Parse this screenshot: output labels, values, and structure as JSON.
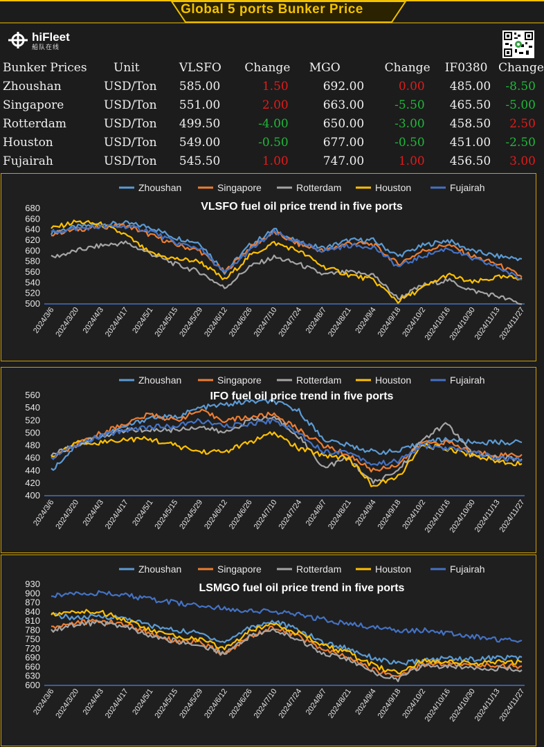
{
  "banner": {
    "title": "Global 5 ports  Bunker Price"
  },
  "logo": {
    "brand": "hiFleet",
    "brand_cn": "船队在线"
  },
  "table": {
    "headers": [
      "Bunker Prices",
      "Unit",
      "VLSFO",
      "Change",
      "MGO",
      "Change",
      "IF0380",
      "Change"
    ],
    "rows": [
      {
        "port": "Zhoushan",
        "unit": "USD/Ton",
        "vlsfo": "585.00",
        "vlsfo_chg": "1.50",
        "mgo": "692.00",
        "mgo_chg": "0.00",
        "ifo": "485.00",
        "ifo_chg": "-8.50"
      },
      {
        "port": "Singapore",
        "unit": "USD/Ton",
        "vlsfo": "551.00",
        "vlsfo_chg": "2.00",
        "mgo": "663.00",
        "mgo_chg": "-5.50",
        "ifo": "465.50",
        "ifo_chg": "-5.00"
      },
      {
        "port": "Rotterdam",
        "unit": "USD/Ton",
        "vlsfo": "499.50",
        "vlsfo_chg": "-4.00",
        "mgo": "650.00",
        "mgo_chg": "-3.00",
        "ifo": "458.50",
        "ifo_chg": "2.50"
      },
      {
        "port": "Houston",
        "unit": "USD/Ton",
        "vlsfo": "549.00",
        "vlsfo_chg": "-0.50",
        "mgo": "677.00",
        "mgo_chg": "-0.50",
        "ifo": "451.00",
        "ifo_chg": "-2.50"
      },
      {
        "port": "Fujairah",
        "unit": "USD/Ton",
        "vlsfo": "545.50",
        "vlsfo_chg": "1.00",
        "mgo": "747.00",
        "mgo_chg": "1.00",
        "ifo": "456.50",
        "ifo_chg": "3.00"
      }
    ]
  },
  "colors": {
    "Zhoushan": "#5b9bd5",
    "Singapore": "#ed7d31",
    "Rotterdam": "#a5a5a5",
    "Houston": "#ffc000",
    "Fujairah": "#4472c4"
  },
  "chart_data": [
    {
      "type": "line",
      "title": "VLSFO fuel oil price trend in five ports",
      "ylim": [
        500,
        680
      ],
      "yticks": [
        500,
        520,
        540,
        560,
        580,
        600,
        620,
        640,
        660,
        680
      ],
      "legend_position": "top",
      "categories": [
        "2024/3/6",
        "2024/3/20",
        "2024/4/3",
        "2024/4/17",
        "2024/5/1",
        "2024/5/15",
        "2024/5/29",
        "2024/6/12",
        "2024/6/26",
        "2024/7/10",
        "2024/7/24",
        "2024/8/7",
        "2024/8/21",
        "2024/9/4",
        "2024/9/18",
        "2024/10/2",
        "2024/10/16",
        "2024/10/30",
        "2024/11/13",
        "2024/11/27"
      ],
      "series": [
        {
          "name": "Zhoushan",
          "values": [
            635,
            645,
            650,
            652,
            645,
            625,
            615,
            560,
            610,
            640,
            615,
            605,
            620,
            620,
            590,
            610,
            620,
            600,
            590,
            585
          ]
        },
        {
          "name": "Singapore",
          "values": [
            632,
            640,
            645,
            648,
            630,
            612,
            600,
            560,
            605,
            635,
            612,
            600,
            615,
            612,
            575,
            600,
            612,
            590,
            575,
            551
          ]
        },
        {
          "name": "Rotterdam",
          "values": [
            587,
            600,
            610,
            615,
            595,
            575,
            560,
            530,
            570,
            588,
            575,
            555,
            560,
            555,
            510,
            535,
            545,
            525,
            515,
            499.5
          ]
        },
        {
          "name": "Houston",
          "values": [
            642,
            655,
            650,
            630,
            595,
            585,
            580,
            545,
            590,
            615,
            600,
            570,
            555,
            545,
            505,
            530,
            555,
            540,
            550,
            549
          ]
        },
        {
          "name": "Fujairah",
          "values": [
            635,
            642,
            645,
            646,
            638,
            615,
            605,
            558,
            600,
            635,
            615,
            600,
            610,
            608,
            570,
            590,
            605,
            585,
            570,
            545.5
          ]
        }
      ]
    },
    {
      "type": "line",
      "title": "IFO fuel oil price trend in five ports",
      "ylim": [
        400,
        560
      ],
      "yticks": [
        400,
        420,
        440,
        460,
        480,
        500,
        520,
        540,
        560
      ],
      "legend_position": "top",
      "categories": [
        "2024/3/6",
        "2024/3/20",
        "2024/4/3",
        "2024/4/17",
        "2024/5/1",
        "2024/5/15",
        "2024/5/29",
        "2024/6/12",
        "2024/6/26",
        "2024/7/10",
        "2024/7/24",
        "2024/8/7",
        "2024/8/21",
        "2024/9/4",
        "2024/9/18",
        "2024/10/2",
        "2024/10/16",
        "2024/10/30",
        "2024/11/13",
        "2024/11/27"
      ],
      "series": [
        {
          "name": "Zhoushan",
          "values": [
            440,
            480,
            495,
            510,
            525,
            525,
            540,
            545,
            550,
            550,
            535,
            490,
            480,
            470,
            470,
            485,
            490,
            485,
            485,
            485
          ]
        },
        {
          "name": "Singapore",
          "values": [
            460,
            480,
            500,
            515,
            530,
            520,
            535,
            520,
            525,
            530,
            505,
            480,
            465,
            440,
            450,
            485,
            485,
            470,
            465,
            465.5
          ]
        },
        {
          "name": "Rotterdam",
          "values": [
            465,
            480,
            495,
            505,
            505,
            505,
            510,
            500,
            520,
            525,
            495,
            445,
            460,
            420,
            440,
            490,
            515,
            465,
            460,
            458.5
          ]
        },
        {
          "name": "Houston",
          "values": [
            460,
            485,
            485,
            490,
            490,
            480,
            470,
            470,
            485,
            500,
            475,
            465,
            460,
            415,
            430,
            480,
            475,
            465,
            455,
            451
          ]
        },
        {
          "name": "Fujairah",
          "values": [
            460,
            480,
            495,
            505,
            510,
            510,
            520,
            510,
            515,
            520,
            500,
            470,
            470,
            450,
            455,
            480,
            475,
            470,
            460,
            456.5
          ]
        }
      ]
    },
    {
      "type": "line",
      "title": "LSMGO fuel oil price trend in five ports",
      "ylim": [
        600,
        930
      ],
      "yticks": [
        600,
        630,
        660,
        690,
        720,
        750,
        780,
        810,
        840,
        870,
        900,
        930
      ],
      "legend_position": "top",
      "categories": [
        "2024/3/6",
        "2024/3/20",
        "2024/4/3",
        "2024/4/17",
        "2024/5/1",
        "2024/5/15",
        "2024/5/29",
        "2024/6/12",
        "2024/6/26",
        "2024/7/10",
        "2024/7/24",
        "2024/8/7",
        "2024/8/21",
        "2024/9/4",
        "2024/9/18",
        "2024/10/2",
        "2024/10/16",
        "2024/10/30",
        "2024/11/13",
        "2024/11/27"
      ],
      "series": [
        {
          "name": "Zhoushan",
          "values": [
            830,
            820,
            825,
            820,
            795,
            780,
            770,
            740,
            790,
            810,
            780,
            740,
            720,
            690,
            670,
            680,
            690,
            685,
            690,
            692
          ]
        },
        {
          "name": "Singapore",
          "values": [
            790,
            805,
            810,
            800,
            770,
            745,
            740,
            700,
            760,
            790,
            760,
            715,
            690,
            650,
            630,
            670,
            670,
            665,
            665,
            663
          ]
        },
        {
          "name": "Rotterdam",
          "values": [
            780,
            800,
            805,
            790,
            760,
            745,
            730,
            705,
            760,
            780,
            750,
            705,
            685,
            640,
            620,
            665,
            660,
            660,
            655,
            650
          ]
        },
        {
          "name": "Houston",
          "values": [
            830,
            840,
            840,
            815,
            780,
            760,
            750,
            720,
            775,
            805,
            770,
            730,
            705,
            665,
            640,
            680,
            680,
            670,
            675,
            677
          ]
        },
        {
          "name": "Fujairah",
          "values": [
            890,
            905,
            900,
            895,
            880,
            870,
            860,
            850,
            845,
            840,
            830,
            815,
            800,
            790,
            780,
            780,
            770,
            760,
            750,
            747
          ]
        }
      ]
    }
  ]
}
